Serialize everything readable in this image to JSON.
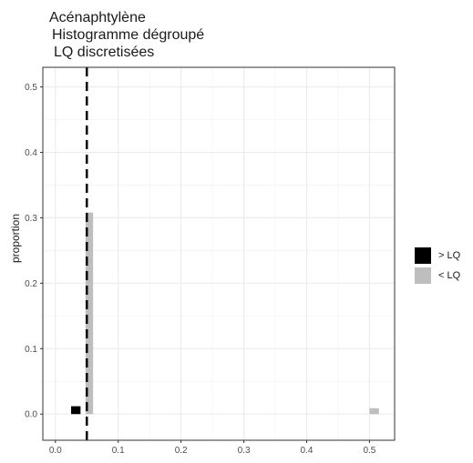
{
  "chart_data": {
    "type": "bar",
    "title_lines": [
      "Acénaphtylène",
      "Histogramme dégroupé",
      "LQ discretisées"
    ],
    "xlabel": "",
    "ylabel": "proportion",
    "xlim": [
      -0.02,
      0.54
    ],
    "ylim": [
      -0.04,
      0.53
    ],
    "x_ticks": [
      0.0,
      0.1,
      0.2,
      0.3,
      0.4,
      0.5
    ],
    "x_tick_labels": [
      "0.0",
      "0.1",
      "0.2",
      "0.3",
      "0.4",
      "0.5"
    ],
    "y_ticks": [
      0.0,
      0.1,
      0.2,
      0.3,
      0.4,
      0.5
    ],
    "y_tick_labels": [
      "0.0",
      "0.1",
      "0.2",
      "0.3",
      "0.4",
      "0.5"
    ],
    "grid": true,
    "legend_position": "right",
    "vline": {
      "x": 0.05,
      "style": "dashed",
      "color": "#000000"
    },
    "series": [
      {
        "name": "> LQ",
        "color": "#000000",
        "bars": [
          {
            "x0": 0.025,
            "x1": 0.04,
            "y": 0.012
          }
        ]
      },
      {
        "name": "< LQ",
        "color": "#bebebe",
        "bars": [
          {
            "x0": 0.048,
            "x1": 0.06,
            "y": 0.308
          },
          {
            "x0": 0.5,
            "x1": 0.515,
            "y": 0.009
          }
        ]
      }
    ]
  }
}
